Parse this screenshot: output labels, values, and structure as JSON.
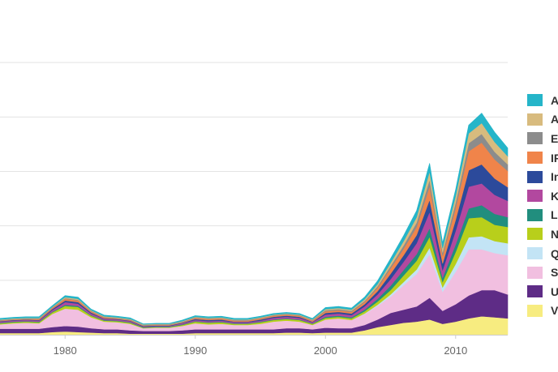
{
  "chart_data": {
    "type": "area",
    "stacked": true,
    "x": [
      1975,
      1976,
      1977,
      1978,
      1979,
      1980,
      1981,
      1982,
      1983,
      1984,
      1985,
      1986,
      1987,
      1988,
      1989,
      1990,
      1991,
      1992,
      1993,
      1994,
      1995,
      1996,
      1997,
      1998,
      1999,
      2000,
      2001,
      2002,
      2003,
      2004,
      2005,
      2006,
      2007,
      2008,
      2009,
      2010,
      2011,
      2012,
      2013,
      2014
    ],
    "xlim": [
      1975,
      2014
    ],
    "x_ticks": [
      1980,
      1990,
      2000,
      2010
    ],
    "x_tick_labels": [
      "1980",
      "1990",
      "2000",
      "2010"
    ],
    "ylim": [
      0,
      600
    ],
    "y_gridlines": [
      0,
      100,
      200,
      300,
      400,
      500
    ],
    "grid": true,
    "legend_position": "right",
    "series": [
      {
        "name": "V",
        "color": "#f7ec80",
        "values": [
          3,
          3,
          3,
          3,
          5,
          6,
          5,
          4,
          3,
          3,
          2,
          2,
          2,
          2,
          2,
          3,
          3,
          3,
          3,
          3,
          3,
          3,
          4,
          4,
          3,
          4,
          4,
          4,
          8,
          14,
          18,
          22,
          24,
          28,
          20,
          24,
          30,
          34,
          32,
          30
        ]
      },
      {
        "name": "U",
        "color": "#5e2c86",
        "values": [
          8,
          8,
          8,
          8,
          9,
          10,
          10,
          8,
          7,
          7,
          6,
          5,
          5,
          5,
          6,
          7,
          7,
          7,
          7,
          7,
          7,
          7,
          8,
          8,
          7,
          9,
          8,
          8,
          10,
          14,
          22,
          24,
          28,
          40,
          24,
          32,
          42,
          48,
          50,
          44
        ]
      },
      {
        "name": "Sa",
        "color": "#f1bfe0",
        "values": [
          8,
          10,
          11,
          10,
          24,
          32,
          31,
          20,
          14,
          13,
          12,
          5,
          6,
          6,
          8,
          11,
          9,
          10,
          8,
          8,
          10,
          14,
          14,
          12,
          8,
          15,
          18,
          15,
          20,
          25,
          30,
          45,
          60,
          80,
          35,
          60,
          85,
          75,
          68,
          72
        ]
      },
      {
        "name": "Q",
        "color": "#c3e4f5",
        "values": [
          0,
          0,
          0,
          0,
          0,
          0,
          0,
          0,
          0,
          0,
          0,
          0,
          0,
          0,
          0,
          0,
          0,
          0,
          0,
          0,
          0,
          0,
          0,
          0,
          0,
          0,
          0,
          0,
          1,
          2,
          4,
          6,
          8,
          12,
          8,
          14,
          22,
          24,
          22,
          22
        ]
      },
      {
        "name": "N",
        "color": "#b8cf1b",
        "values": [
          2,
          2,
          2,
          2,
          3,
          5,
          5,
          3,
          2,
          2,
          2,
          1,
          1,
          1,
          2,
          3,
          3,
          3,
          2,
          2,
          3,
          3,
          3,
          3,
          2,
          3,
          3,
          3,
          4,
          6,
          8,
          12,
          16,
          20,
          10,
          22,
          35,
          35,
          30,
          30
        ]
      },
      {
        "name": "L",
        "color": "#218e7e",
        "values": [
          1,
          1,
          1,
          1,
          1,
          2,
          2,
          1,
          1,
          1,
          1,
          1,
          1,
          1,
          1,
          1,
          1,
          1,
          1,
          1,
          1,
          1,
          1,
          1,
          1,
          2,
          2,
          2,
          3,
          5,
          8,
          10,
          12,
          16,
          8,
          14,
          18,
          22,
          20,
          18
        ]
      },
      {
        "name": "K",
        "color": "#b2489f",
        "values": [
          2,
          2,
          2,
          2,
          3,
          5,
          4,
          3,
          2,
          2,
          2,
          1,
          1,
          1,
          2,
          2,
          2,
          2,
          2,
          2,
          2,
          3,
          3,
          3,
          2,
          4,
          4,
          4,
          6,
          8,
          12,
          15,
          20,
          30,
          14,
          25,
          40,
          40,
          35,
          30
        ]
      },
      {
        "name": "In",
        "color": "#2c4a9b",
        "values": [
          1,
          1,
          1,
          1,
          2,
          3,
          3,
          2,
          1,
          1,
          1,
          1,
          1,
          1,
          1,
          2,
          2,
          2,
          1,
          1,
          2,
          2,
          2,
          2,
          1,
          3,
          3,
          3,
          4,
          6,
          10,
          12,
          15,
          22,
          12,
          20,
          30,
          35,
          30,
          25
        ]
      },
      {
        "name": "IF",
        "color": "#f0844a",
        "values": [
          1,
          1,
          1,
          2,
          2,
          3,
          3,
          2,
          2,
          1,
          1,
          1,
          1,
          1,
          1,
          2,
          2,
          2,
          2,
          2,
          2,
          2,
          2,
          2,
          2,
          3,
          3,
          3,
          4,
          6,
          10,
          12,
          15,
          25,
          14,
          22,
          35,
          40,
          35,
          30
        ]
      },
      {
        "name": "Ec",
        "color": "#8c8c8c",
        "values": [
          1,
          1,
          1,
          1,
          1,
          1,
          1,
          1,
          1,
          1,
          1,
          1,
          1,
          1,
          1,
          1,
          1,
          1,
          1,
          1,
          1,
          1,
          1,
          1,
          1,
          2,
          2,
          2,
          2,
          3,
          4,
          6,
          8,
          12,
          6,
          10,
          15,
          16,
          14,
          12
        ]
      },
      {
        "name": "Af",
        "color": "#d8bb7e",
        "values": [
          1,
          1,
          1,
          1,
          1,
          2,
          2,
          1,
          1,
          1,
          1,
          1,
          1,
          1,
          1,
          1,
          1,
          1,
          1,
          1,
          1,
          1,
          1,
          1,
          1,
          2,
          2,
          2,
          3,
          4,
          6,
          8,
          10,
          15,
          8,
          12,
          18,
          20,
          18,
          15
        ]
      },
      {
        "name": "Al",
        "color": "#25b5c9",
        "values": [
          2,
          2,
          2,
          2,
          2,
          3,
          3,
          2,
          2,
          2,
          2,
          1,
          1,
          1,
          2,
          2,
          2,
          2,
          2,
          2,
          2,
          2,
          2,
          2,
          2,
          3,
          3,
          3,
          4,
          6,
          8,
          10,
          12,
          15,
          10,
          12,
          15,
          18,
          18,
          15
        ]
      }
    ]
  }
}
